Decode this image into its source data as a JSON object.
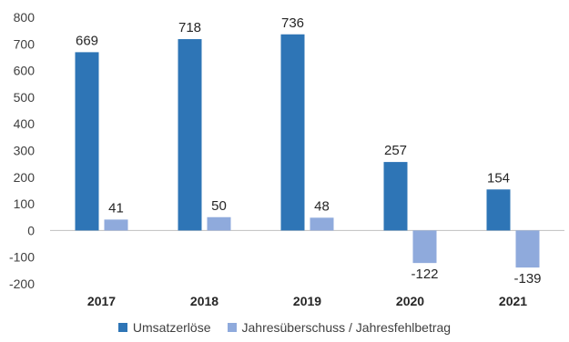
{
  "chart_data": {
    "type": "bar",
    "categories": [
      "2017",
      "2018",
      "2019",
      "2020",
      "2021"
    ],
    "series": [
      {
        "name": "Umsatzerlöse",
        "color": "#2E75B6",
        "values": [
          669,
          718,
          736,
          257,
          154
        ]
      },
      {
        "name": "Jahresüberschuss / Jahresfehlbetrag",
        "color": "#8FAADC",
        "values": [
          41,
          50,
          48,
          -122,
          -139
        ]
      }
    ],
    "ylim": [
      -200,
      800
    ],
    "yticks": [
      -200,
      -100,
      0,
      100,
      200,
      300,
      400,
      500,
      600,
      700,
      800
    ],
    "grid": false,
    "legend": "bottom"
  }
}
